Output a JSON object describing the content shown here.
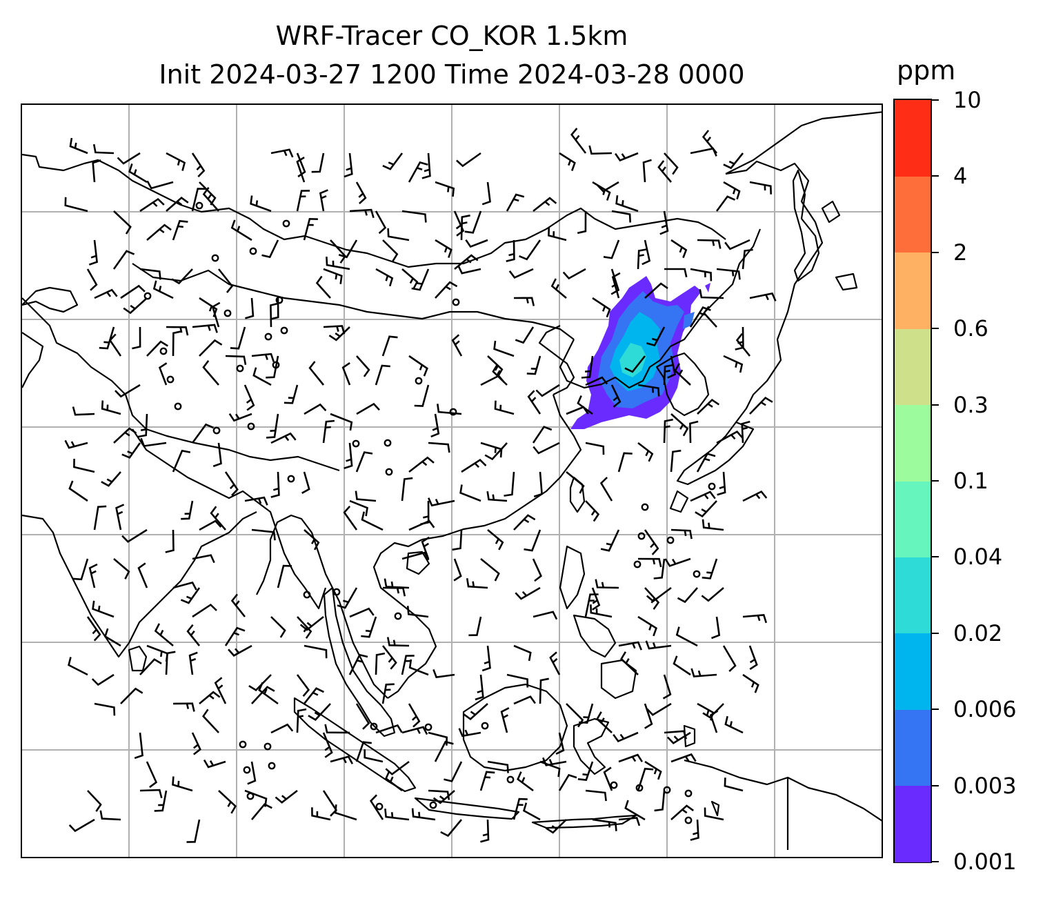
{
  "title": {
    "line1": "WRF-Tracer CO_KOR 1.5km",
    "line2": "Init 2024-03-27 1200 Time 2024-03-28 0000"
  },
  "colorbar": {
    "unit": "ppm",
    "levels": [
      "0.001",
      "0.003",
      "0.006",
      "0.02",
      "0.04",
      "0.1",
      "0.3",
      "0.6",
      "2",
      "4",
      "10"
    ],
    "colors": [
      "#6a2bff",
      "#3574f2",
      "#00b4ee",
      "#2edbd6",
      "#66f6bd",
      "#9cfb9c",
      "#cfe08a",
      "#feb063",
      "#fe6e3b",
      "#fe2d16"
    ]
  },
  "map": {
    "gridlines": "on",
    "gridline_color": "#b0b0b0",
    "coastline_color": "#000000",
    "tracer_colors": [
      "#6a2bff",
      "#3574f2",
      "#00b4ee",
      "#2edbd6"
    ],
    "wind_barbs": "on",
    "calm_markers": "on"
  }
}
